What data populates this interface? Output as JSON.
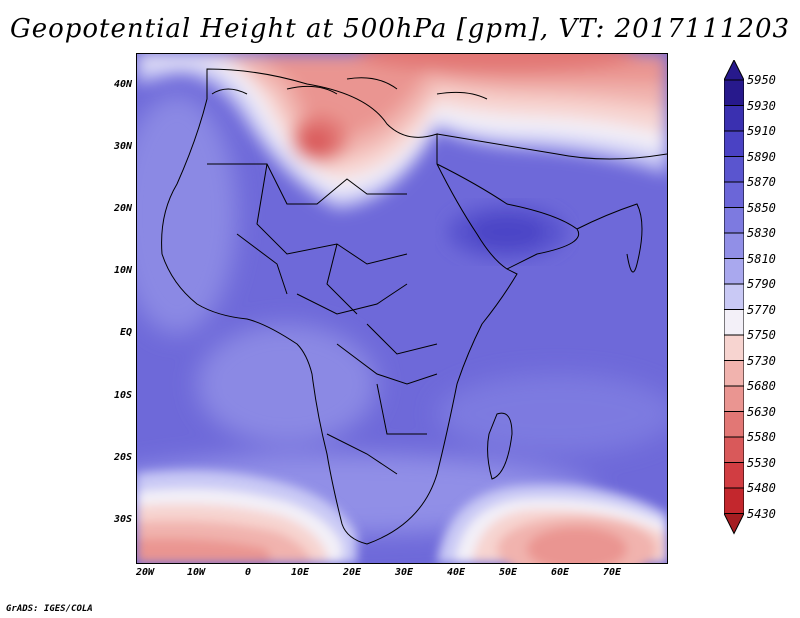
{
  "title": "Geopotential Height at 500hPa [gpm], VT: 2017111203",
  "credit": "GrADS: IGES/COLA",
  "lat_labels": [
    "40N",
    "30N",
    "20N",
    "10N",
    "EQ",
    "10S",
    "20S",
    "30S"
  ],
  "lon_labels": [
    "20W",
    "10W",
    "0",
    "10E",
    "20E",
    "30E",
    "40E",
    "50E",
    "60E",
    "70E"
  ],
  "colorbar": {
    "levels": [
      "5950",
      "5930",
      "5910",
      "5890",
      "5870",
      "5850",
      "5830",
      "5810",
      "5790",
      "5770",
      "5750",
      "5730",
      "5680",
      "5630",
      "5580",
      "5530",
      "5480",
      "5430"
    ],
    "colors": [
      "#27198c",
      "#3a30b0",
      "#4a42c4",
      "#5a55cf",
      "#6b66d8",
      "#7d7ae0",
      "#918fe7",
      "#a9a8ee",
      "#c9c9f5",
      "#f3f0f8",
      "#f7d4d0",
      "#f1b3ae",
      "#ea9591",
      "#e27775",
      "#d9595a",
      "#d13d42",
      "#c3272d",
      "#a51d21"
    ]
  },
  "map_colors": {
    "ocean_base": "#6e69d9",
    "light": "#8b89e4",
    "deep_high": "#4c45c6",
    "warm_low": "#e27775",
    "warm_mid": "#f1b3ae",
    "warm_pale": "#fbe5e2"
  }
}
